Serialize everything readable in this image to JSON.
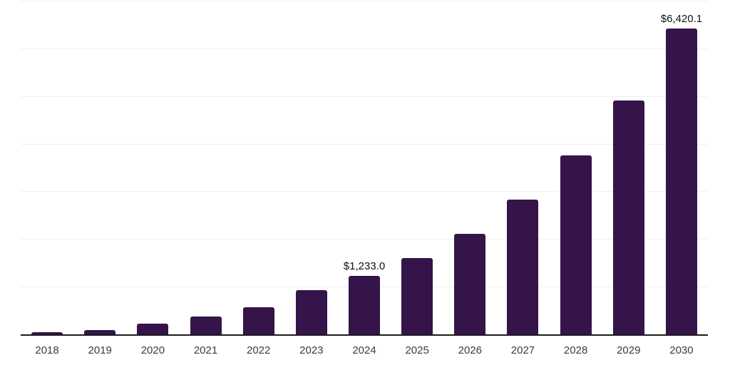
{
  "chart_data": {
    "type": "bar",
    "title": "",
    "xlabel": "",
    "ylabel": "",
    "categories": [
      "2018",
      "2019",
      "2020",
      "2021",
      "2022",
      "2023",
      "2024",
      "2025",
      "2026",
      "2027",
      "2028",
      "2029",
      "2030"
    ],
    "values": [
      45,
      90,
      225,
      375,
      570,
      930,
      1233.0,
      1600,
      2110,
      2830,
      3755,
      4905,
      6420.1
    ],
    "data_labels": [
      null,
      null,
      null,
      null,
      null,
      null,
      "$1,233.0",
      null,
      null,
      null,
      null,
      null,
      "$6,420.1"
    ],
    "ylim": [
      0,
      7000
    ],
    "gridline_step": 1000,
    "grid": "horizontal-only",
    "legend_position": "none",
    "y_axis_tick_labels_visible": false,
    "colors": {
      "bar": "#341449",
      "axis_line": "#1c1c1c",
      "gridline": "#f0f0f0",
      "tick_label": "#3c3c3c",
      "data_label": "#111111",
      "background": "#ffffff"
    }
  }
}
